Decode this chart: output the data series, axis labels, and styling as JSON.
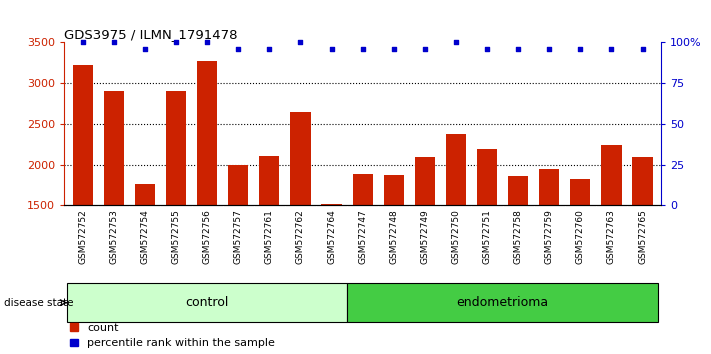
{
  "title": "GDS3975 / ILMN_1791478",
  "samples": [
    "GSM572752",
    "GSM572753",
    "GSM572754",
    "GSM572755",
    "GSM572756",
    "GSM572757",
    "GSM572761",
    "GSM572762",
    "GSM572764",
    "GSM572747",
    "GSM572748",
    "GSM572749",
    "GSM572750",
    "GSM572751",
    "GSM572758",
    "GSM572759",
    "GSM572760",
    "GSM572763",
    "GSM572765"
  ],
  "counts": [
    3220,
    2900,
    1760,
    2910,
    3270,
    2000,
    2100,
    2650,
    1520,
    1880,
    1870,
    2090,
    2370,
    2195,
    1860,
    1940,
    1820,
    2240,
    2090
  ],
  "percentiles": [
    100,
    100,
    96,
    100,
    100,
    96,
    96,
    100,
    96,
    96,
    96,
    96,
    100,
    96,
    96,
    96,
    96,
    96,
    96
  ],
  "groups": [
    "control",
    "control",
    "control",
    "control",
    "control",
    "control",
    "control",
    "control",
    "control",
    "endometrioma",
    "endometrioma",
    "endometrioma",
    "endometrioma",
    "endometrioma",
    "endometrioma",
    "endometrioma",
    "endometrioma",
    "endometrioma",
    "endometrioma"
  ],
  "bar_color": "#cc2200",
  "dot_color": "#0000cc",
  "control_color": "#ccffcc",
  "endometrioma_color": "#44cc44",
  "tick_bg_color": "#cccccc",
  "ylim": [
    1500,
    3500
  ],
  "yticks_left": [
    1500,
    2000,
    2500,
    3000,
    3500
  ],
  "yticks_right": [
    0,
    25,
    50,
    75,
    100
  ],
  "grid_lines": [
    2000,
    2500,
    3000
  ],
  "legend_count_label": "count",
  "legend_percentile_label": "percentile rank within the sample"
}
